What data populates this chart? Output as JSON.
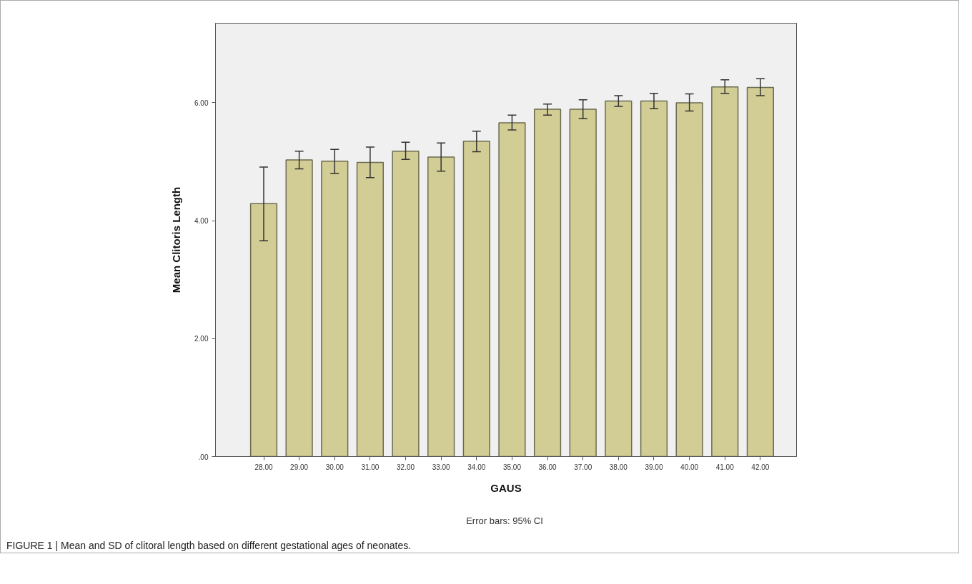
{
  "chart_data": {
    "type": "bar",
    "xlabel": "GAUS",
    "ylabel": "Mean Clitoris Length",
    "categories": [
      "28.00",
      "29.00",
      "30.00",
      "31.00",
      "32.00",
      "33.00",
      "34.00",
      "35.00",
      "36.00",
      "37.00",
      "38.00",
      "39.00",
      "40.00",
      "41.00",
      "42.00"
    ],
    "values": [
      4.29,
      5.03,
      5.01,
      4.99,
      5.18,
      5.08,
      5.35,
      5.66,
      5.89,
      5.89,
      6.03,
      6.03,
      6.0,
      6.27,
      6.26
    ],
    "errors": [
      [
        3.66,
        4.91
      ],
      [
        4.88,
        5.18
      ],
      [
        4.8,
        5.21
      ],
      [
        4.73,
        5.25
      ],
      [
        5.04,
        5.33
      ],
      [
        4.84,
        5.32
      ],
      [
        5.17,
        5.52
      ],
      [
        5.54,
        5.79
      ],
      [
        5.79,
        5.98
      ],
      [
        5.73,
        6.05
      ],
      [
        5.94,
        6.12
      ],
      [
        5.9,
        6.16
      ],
      [
        5.86,
        6.15
      ],
      [
        6.16,
        6.39
      ],
      [
        6.12,
        6.41
      ]
    ],
    "color": "#d2cd94",
    "ylim": [
      0,
      7.35
    ],
    "yticks": [
      {
        "value": 0,
        "label": ".00"
      },
      {
        "value": 2,
        "label": "2.00"
      },
      {
        "value": 4,
        "label": "4.00"
      },
      {
        "value": 6,
        "label": "6.00"
      }
    ],
    "annotations": [
      "Error bars: 95% CI",
      "FIGURE 1 | Mean and SD of clitoral length based on different gestational ages of neonates."
    ]
  }
}
